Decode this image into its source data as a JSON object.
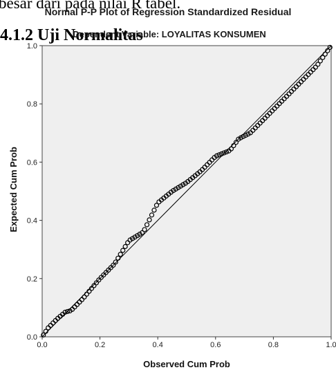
{
  "document": {
    "partial_line": "besar dari pada nilai R tabel.",
    "heading": "4.1.2 Uji Normalitas"
  },
  "chart_data": {
    "type": "scatter",
    "title": "Normal P-P Plot of Regression Standardized Residual",
    "subtitle": "Dependent Variable: LOYALITAS KONSUMEN",
    "xlabel": "Observed Cum Prob",
    "ylabel": "Expected Cum Prob",
    "xlim": [
      0.0,
      1.0
    ],
    "ylim": [
      0.0,
      1.0
    ],
    "x_ticks": [
      "0.0",
      "0.2",
      "0.4",
      "0.6",
      "0.8",
      "1.0"
    ],
    "y_ticks": [
      "0.0",
      "0.2",
      "0.4",
      "0.6",
      "0.8",
      "1.0"
    ],
    "reference_line": [
      [
        0.0,
        0.0
      ],
      [
        1.0,
        1.0
      ]
    ],
    "colors": {
      "plot_background": "#efefef",
      "marker": "#000000",
      "reference_line": "#000000"
    },
    "curve_knots": [
      [
        0.0,
        0.0
      ],
      [
        0.02,
        0.03
      ],
      [
        0.05,
        0.06
      ],
      [
        0.08,
        0.085
      ],
      [
        0.1,
        0.09
      ],
      [
        0.14,
        0.13
      ],
      [
        0.2,
        0.2
      ],
      [
        0.25,
        0.25
      ],
      [
        0.3,
        0.33
      ],
      [
        0.35,
        0.36
      ],
      [
        0.37,
        0.4
      ],
      [
        0.4,
        0.46
      ],
      [
        0.45,
        0.5
      ],
      [
        0.5,
        0.53
      ],
      [
        0.55,
        0.57
      ],
      [
        0.6,
        0.62
      ],
      [
        0.65,
        0.64
      ],
      [
        0.68,
        0.68
      ],
      [
        0.72,
        0.7
      ],
      [
        0.76,
        0.74
      ],
      [
        0.8,
        0.78
      ],
      [
        0.85,
        0.83
      ],
      [
        0.9,
        0.88
      ],
      [
        0.95,
        0.93
      ],
      [
        1.0,
        1.0
      ]
    ],
    "point_count": 120
  }
}
